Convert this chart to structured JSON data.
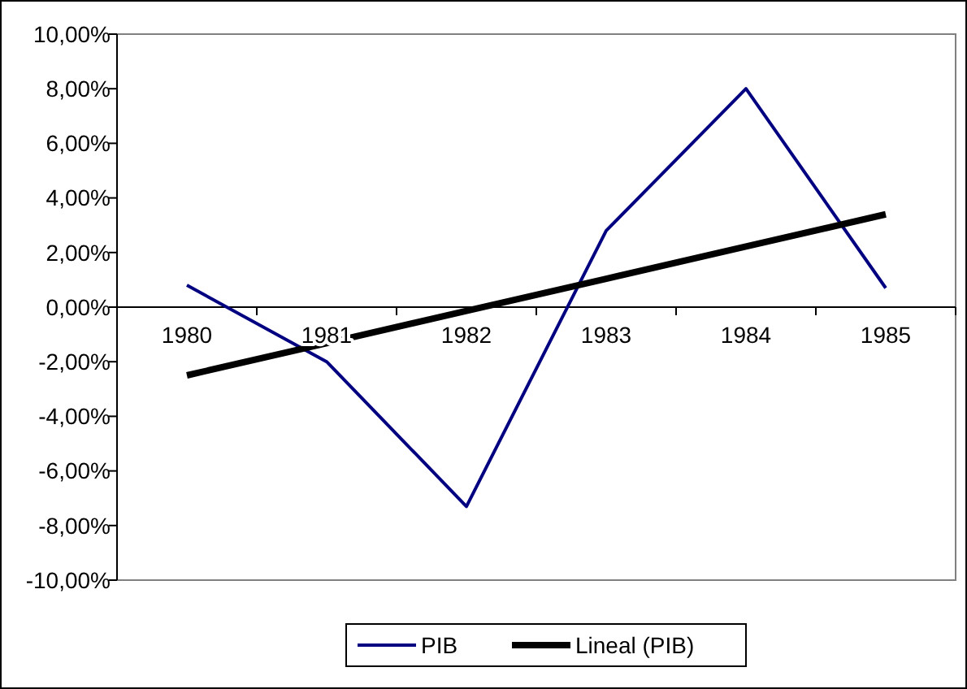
{
  "chart_data": {
    "type": "line",
    "categories": [
      "1980",
      "1981",
      "1982",
      "1983",
      "1984",
      "1985"
    ],
    "series": [
      {
        "name": "PIB",
        "color": "#000080",
        "values": [
          0.8,
          -2.0,
          -7.3,
          2.8,
          8.0,
          0.7
        ]
      },
      {
        "name": "Lineal (PIB)",
        "color": "#000000",
        "values": [
          -2.5,
          -1.32,
          -0.14,
          1.04,
          2.22,
          3.4
        ]
      }
    ],
    "ylim": [
      -10,
      10
    ],
    "yticks": [
      {
        "value": -10,
        "label": "-10,00%"
      },
      {
        "value": -8,
        "label": "-8,00%"
      },
      {
        "value": -6,
        "label": "-6,00%"
      },
      {
        "value": -4,
        "label": "-4,00%"
      },
      {
        "value": -2,
        "label": "-2,00%"
      },
      {
        "value": 0,
        "label": "0,00%"
      },
      {
        "value": 2,
        "label": "2,00%"
      },
      {
        "value": 4,
        "label": "4,00%"
      },
      {
        "value": 6,
        "label": "6,00%"
      },
      {
        "value": 8,
        "label": "8,00%"
      },
      {
        "value": 10,
        "label": "10,00%"
      }
    ],
    "grid": false,
    "legend": "bottom",
    "line_style": "solid"
  }
}
